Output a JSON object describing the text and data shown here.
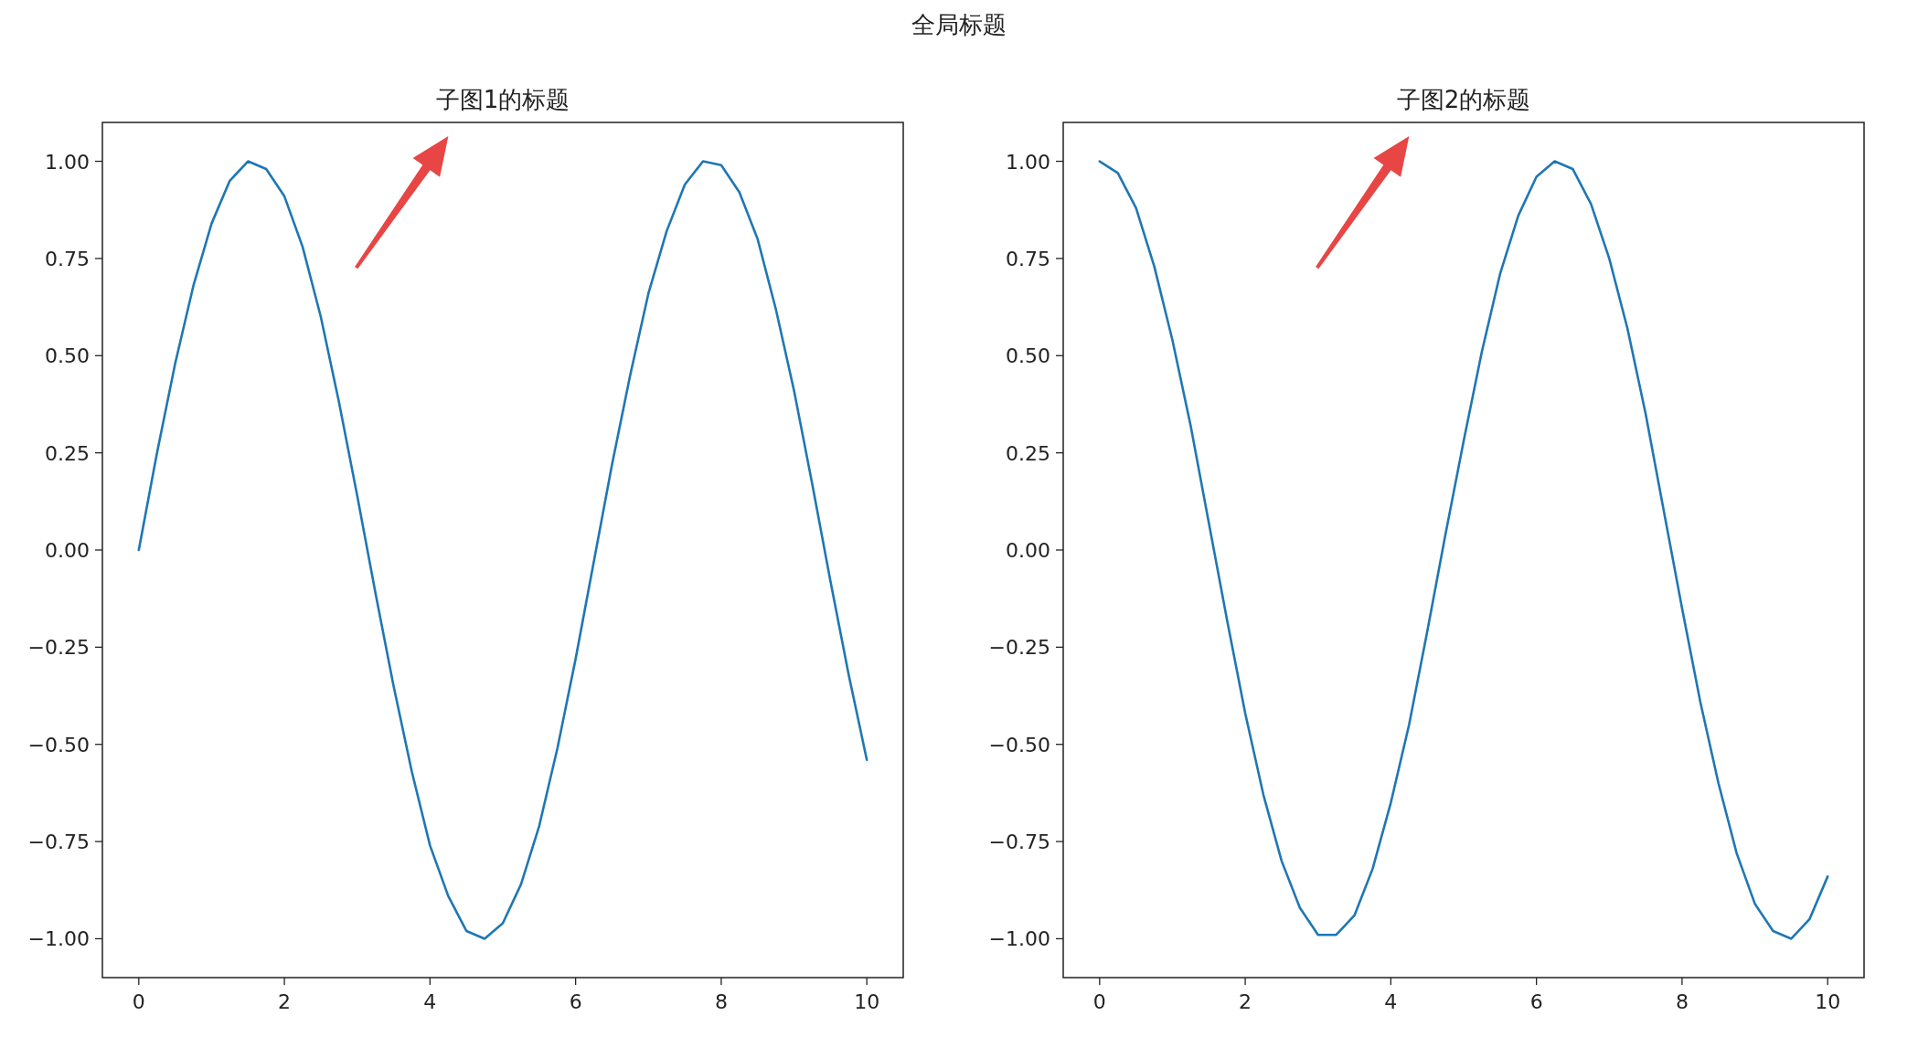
{
  "chart_data": [
    {
      "type": "other",
      "title": "全局标题"
    },
    {
      "type": "line",
      "title": "子图1的标题",
      "xlim": [
        -0.5,
        10.5
      ],
      "ylim": [
        -1.1,
        1.1
      ],
      "xticks": [
        0,
        2,
        4,
        6,
        8,
        10
      ],
      "grid": false,
      "yticks": [
        {
          "value": 1,
          "label": "1.00"
        },
        {
          "value": 0.75,
          "label": "0.75"
        },
        {
          "value": 0.5,
          "label": "0.50"
        },
        {
          "value": 0.25,
          "label": "0.25"
        },
        {
          "value": 0,
          "label": "0.00"
        },
        {
          "value": -0.25,
          "label": "−0.25"
        },
        {
          "value": -0.5,
          "label": "−0.50"
        },
        {
          "value": -0.75,
          "label": "−0.75"
        },
        {
          "value": -1,
          "label": "−1.00"
        }
      ],
      "x": [
        0,
        0.25,
        0.5,
        0.75,
        1,
        1.25,
        1.5,
        1.75,
        2,
        2.25,
        2.5,
        2.75,
        3,
        3.25,
        3.5,
        3.75,
        4,
        4.25,
        4.5,
        4.75,
        5,
        5.25,
        5.5,
        5.75,
        6,
        6.25,
        6.5,
        6.75,
        7,
        7.25,
        7.5,
        7.75,
        8,
        8.25,
        8.5,
        8.75,
        9,
        9.25,
        9.5,
        9.75,
        10
      ],
      "series": [
        {
          "color": "#1f77b4",
          "values": [
            0,
            0.25,
            0.48,
            0.68,
            0.84,
            0.95,
            1.0,
            0.98,
            0.91,
            0.78,
            0.6,
            0.38,
            0.14,
            -0.11,
            -0.35,
            -0.57,
            -0.76,
            -0.89,
            -0.98,
            -1.0,
            -0.96,
            -0.86,
            -0.71,
            -0.51,
            -0.28,
            -0.03,
            0.22,
            0.45,
            0.66,
            0.82,
            0.94,
            1.0,
            0.99,
            0.92,
            0.8,
            0.62,
            0.41,
            0.17,
            -0.08,
            -0.32,
            -0.54
          ]
        }
      ]
    },
    {
      "type": "line",
      "title": "子图2的标题",
      "xlim": [
        -0.5,
        10.5
      ],
      "ylim": [
        -1.1,
        1.1
      ],
      "xticks": [
        0,
        2,
        4,
        6,
        8,
        10
      ],
      "grid": false,
      "yticks": [
        {
          "value": 1,
          "label": "1.00"
        },
        {
          "value": 0.75,
          "label": "0.75"
        },
        {
          "value": 0.5,
          "label": "0.50"
        },
        {
          "value": 0.25,
          "label": "0.25"
        },
        {
          "value": 0,
          "label": "0.00"
        },
        {
          "value": -0.25,
          "label": "−0.25"
        },
        {
          "value": -0.5,
          "label": "−0.50"
        },
        {
          "value": -0.75,
          "label": "−0.75"
        },
        {
          "value": -1,
          "label": "−1.00"
        }
      ],
      "x": [
        0,
        0.25,
        0.5,
        0.75,
        1,
        1.25,
        1.5,
        1.75,
        2,
        2.25,
        2.5,
        2.75,
        3,
        3.25,
        3.5,
        3.75,
        4,
        4.25,
        4.5,
        4.75,
        5,
        5.25,
        5.5,
        5.75,
        6,
        6.25,
        6.5,
        6.75,
        7,
        7.25,
        7.5,
        7.75,
        8,
        8.25,
        8.5,
        8.75,
        9,
        9.25,
        9.5,
        9.75,
        10
      ],
      "series": [
        {
          "color": "#1f77b4",
          "values": [
            1.0,
            0.97,
            0.88,
            0.73,
            0.54,
            0.32,
            0.07,
            -0.18,
            -0.42,
            -0.63,
            -0.8,
            -0.92,
            -0.99,
            -0.99,
            -0.94,
            -0.82,
            -0.65,
            -0.45,
            -0.21,
            0.04,
            0.28,
            0.51,
            0.71,
            0.86,
            0.96,
            1.0,
            0.98,
            0.89,
            0.75,
            0.57,
            0.35,
            0.1,
            -0.15,
            -0.39,
            -0.6,
            -0.78,
            -0.91,
            -0.98,
            -1.0,
            -0.95,
            -0.84
          ]
        }
      ]
    }
  ]
}
